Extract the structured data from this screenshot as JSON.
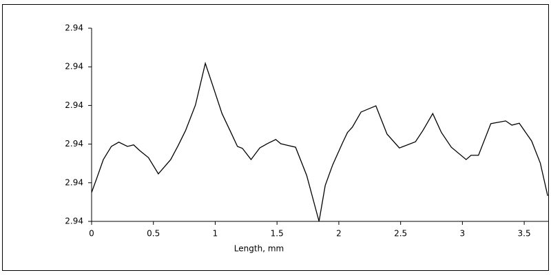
{
  "chart_data": {
    "type": "line",
    "x_label": "Length, mm",
    "xlim": [
      0,
      3.7
    ],
    "xticks": [
      0,
      0.5,
      1,
      1.5,
      2,
      2.5,
      3,
      3.5
    ],
    "ylim": [
      2.9398,
      2.9403
    ],
    "yticks": [
      {
        "value": 2.9398,
        "label": "2.94"
      },
      {
        "value": 2.9399,
        "label": "2.94"
      },
      {
        "value": 2.94,
        "label": "2.94"
      },
      {
        "value": 2.9401,
        "label": "2.94"
      },
      {
        "value": 2.9402,
        "label": "2.94"
      },
      {
        "value": 2.9403,
        "label": "2.94"
      }
    ],
    "series": [
      {
        "color": "#000000",
        "x": [
          0,
          0.04,
          0.095,
          0.16,
          0.22,
          0.29,
          0.34,
          0.39,
          0.46,
          0.54,
          0.64,
          0.7,
          0.76,
          0.84,
          0.92,
          0.99,
          1.055,
          1.12,
          1.18,
          1.22,
          1.29,
          1.36,
          1.42,
          1.49,
          1.53,
          1.57,
          1.65,
          1.74,
          1.84,
          1.89,
          1.95,
          2.03,
          2.07,
          2.11,
          2.18,
          2.3,
          2.39,
          2.49,
          2.62,
          2.68,
          2.76,
          2.83,
          2.91,
          3.03,
          3.07,
          3.13,
          3.23,
          3.35,
          3.4,
          3.46,
          3.56,
          3.63,
          3.69
        ],
        "values": [
          2.939875,
          2.93991,
          2.93996,
          2.939994,
          2.940005,
          2.939994,
          2.939998,
          2.939983,
          2.939965,
          2.939923,
          2.93996,
          2.939996,
          2.940035,
          2.940101,
          2.940209,
          2.940142,
          2.940079,
          2.940035,
          2.939994,
          2.939989,
          2.93996,
          2.93999,
          2.940001,
          2.940012,
          2.940001,
          2.939998,
          2.939992,
          2.939919,
          2.9398,
          2.939893,
          2.939946,
          2.940003,
          2.94003,
          2.940044,
          2.940083,
          2.940099,
          2.940026,
          2.93999,
          2.940006,
          2.940035,
          2.940079,
          2.94003,
          2.939992,
          2.93996,
          2.939971,
          2.939971,
          2.940053,
          2.94006,
          2.940049,
          2.940054,
          2.940008,
          2.939951,
          2.939866
        ]
      }
    ]
  }
}
